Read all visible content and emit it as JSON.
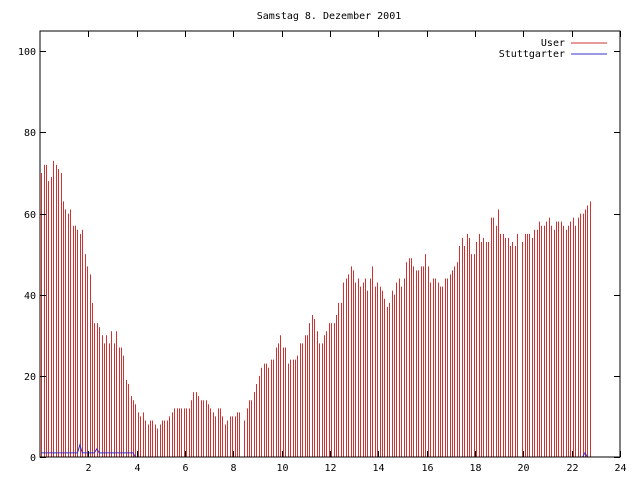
{
  "chart_data": {
    "type": "bar",
    "title": "Samstag 8. Dezember 2001",
    "xlabel": "",
    "ylabel": "",
    "xlim": [
      0,
      24
    ],
    "ylim": [
      0,
      105
    ],
    "x_ticks": [
      2,
      4,
      6,
      8,
      10,
      12,
      14,
      16,
      18,
      20,
      22,
      24
    ],
    "y_ticks": [
      0,
      20,
      40,
      60,
      80,
      100
    ],
    "grid": false,
    "legend": "top-right",
    "bin_hours": 0.1,
    "colors": {
      "User": "#cc3333",
      "Stuttgarter": "#3333cc"
    },
    "series": [
      {
        "name": "User",
        "style": "bars",
        "values": [
          70,
          72,
          72,
          68,
          69,
          73,
          72,
          71,
          70,
          63,
          61,
          60,
          61,
          57,
          57,
          56,
          55,
          56,
          50,
          47,
          45,
          38,
          33,
          33,
          32,
          30,
          28,
          30,
          28,
          31,
          28,
          31,
          27,
          27,
          25,
          19,
          18,
          15,
          14,
          13,
          11,
          10,
          11,
          9,
          8,
          9,
          9,
          8,
          7,
          8,
          9,
          9,
          9,
          10,
          11,
          12,
          12,
          12,
          12,
          12,
          12,
          12,
          14,
          16,
          16,
          15,
          14,
          14,
          14,
          13,
          12,
          11,
          10,
          12,
          12,
          10,
          8,
          9,
          10,
          10,
          10,
          11,
          11,
          0,
          9,
          12,
          14,
          14,
          16,
          18,
          20,
          22,
          23,
          23,
          22,
          24,
          24,
          27,
          28,
          30,
          27,
          27,
          23,
          24,
          24,
          24,
          25,
          28,
          28,
          30,
          30,
          33,
          35,
          34,
          31,
          28,
          28,
          30,
          31,
          33,
          33,
          33,
          35,
          38,
          38,
          43,
          44,
          45,
          47,
          46,
          43,
          44,
          42,
          43,
          44,
          41,
          44,
          47,
          42,
          43,
          42,
          41,
          39,
          37,
          38,
          41,
          40,
          43,
          44,
          42,
          44,
          48,
          49,
          49,
          47,
          46,
          46,
          47,
          47,
          50,
          47,
          43,
          44,
          44,
          43,
          42,
          42,
          44,
          44,
          45,
          46,
          47,
          48,
          52,
          54,
          52,
          55,
          54,
          50,
          50,
          53,
          55,
          53,
          54,
          53,
          53,
          59,
          59,
          57,
          61,
          55,
          55,
          54,
          54,
          52,
          53,
          52,
          55,
          0,
          53,
          55,
          55,
          55,
          54,
          56,
          56,
          58,
          57,
          57,
          58,
          59,
          57,
          56,
          58,
          58,
          58,
          57,
          56,
          57,
          58,
          59,
          57,
          59,
          60,
          60,
          61,
          62,
          63
        ]
      },
      {
        "name": "Stuttgarter",
        "style": "line",
        "values": [
          1,
          1,
          1,
          1,
          1,
          1,
          1,
          1,
          1,
          1,
          1,
          1,
          1,
          1,
          1,
          1,
          3,
          1,
          1,
          1,
          1,
          1,
          1,
          2,
          1,
          1,
          1,
          1,
          1,
          1,
          1,
          1,
          1,
          1,
          1,
          1,
          1,
          1,
          1,
          0,
          0,
          0,
          0,
          0,
          0,
          0,
          0,
          0,
          0,
          0,
          0,
          0,
          0,
          0,
          0,
          0,
          0,
          0,
          0,
          0,
          0,
          0,
          0,
          0,
          0,
          0,
          0,
          0,
          0,
          0,
          0,
          0,
          0,
          0,
          0,
          0,
          0,
          0,
          0,
          0,
          0,
          0,
          0,
          0,
          0,
          0,
          0,
          0,
          0,
          0,
          0,
          0,
          0,
          0,
          0,
          0,
          0,
          0,
          0,
          0,
          0,
          0,
          0,
          0,
          0,
          0,
          0,
          0,
          0,
          0,
          0,
          0,
          0,
          0,
          0,
          0,
          0,
          0,
          0,
          0,
          0,
          0,
          0,
          0,
          0,
          0,
          0,
          0,
          0,
          0,
          0,
          0,
          0,
          0,
          0,
          0,
          0,
          0,
          0,
          0,
          0,
          0,
          0,
          0,
          0,
          0,
          0,
          0,
          0,
          0,
          0,
          0,
          0,
          0,
          0,
          0,
          0,
          0,
          0,
          0,
          0,
          0,
          0,
          0,
          0,
          0,
          0,
          0,
          0,
          0,
          0,
          0,
          0,
          0,
          0,
          0,
          0,
          0,
          0,
          0,
          0,
          0,
          0,
          0,
          0,
          0,
          0,
          0,
          0,
          0,
          0,
          0,
          0,
          0,
          0,
          0,
          0,
          0,
          0,
          0,
          0,
          0,
          0,
          0,
          0,
          0,
          0,
          0,
          0,
          0,
          0,
          0,
          0,
          0,
          0,
          0,
          0,
          0,
          0,
          0,
          0,
          0,
          0,
          0,
          0,
          1,
          0,
          0,
          0,
          0,
          0,
          0,
          0,
          0,
          0,
          0
        ]
      }
    ]
  }
}
